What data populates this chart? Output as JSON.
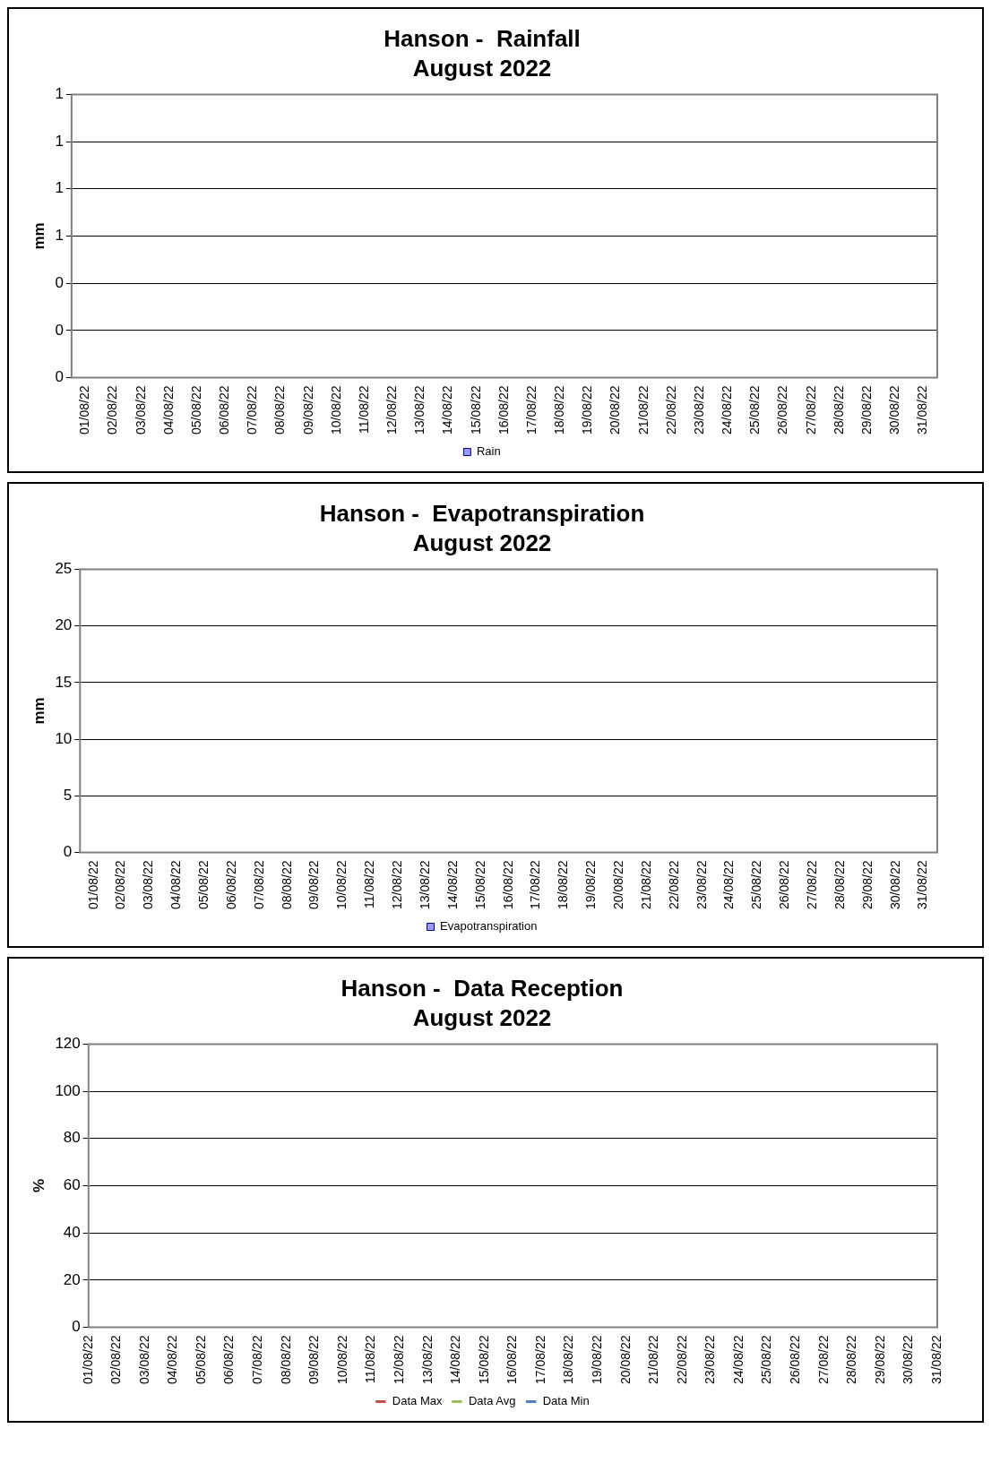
{
  "chart_data": [
    {
      "type": "bar",
      "title": "Hanson -  Rainfall",
      "subtitle": "August 2022",
      "ylabel": "mm",
      "categories": [
        "01/08/22",
        "02/08/22",
        "03/08/22",
        "04/08/22",
        "05/08/22",
        "06/08/22",
        "07/08/22",
        "08/08/22",
        "09/08/22",
        "10/08/22",
        "11/08/22",
        "12/08/22",
        "13/08/22",
        "14/08/22",
        "15/08/22",
        "16/08/22",
        "17/08/22",
        "18/08/22",
        "19/08/22",
        "20/08/22",
        "21/08/22",
        "22/08/22",
        "23/08/22",
        "24/08/22",
        "25/08/22",
        "26/08/22",
        "27/08/22",
        "28/08/22",
        "29/08/22",
        "30/08/22",
        "31/08/22"
      ],
      "series": [
        {
          "name": "Rain",
          "color": "#9999ff",
          "values": [
            null,
            null,
            null,
            null,
            null,
            null,
            null,
            null,
            null,
            null,
            null,
            null,
            null,
            null,
            null,
            null,
            null,
            null,
            null,
            null,
            null,
            null,
            null,
            null,
            null,
            null,
            null,
            null,
            null,
            null,
            null
          ]
        }
      ],
      "ylim": [
        0,
        1.2
      ],
      "yticks": [
        0,
        {
          "value": 0.2,
          "label": "0"
        },
        {
          "value": 0.4,
          "label": "0"
        },
        {
          "value": 0.6,
          "label": "1"
        },
        {
          "value": 0.8,
          "label": "1"
        },
        {
          "value": 1,
          "label": "1"
        },
        {
          "value": 1.2,
          "label": "1"
        }
      ],
      "grid": "y",
      "legend": "bottom"
    },
    {
      "type": "bar",
      "title": "Hanson -  Evapotranspiration",
      "subtitle": "August 2022",
      "ylabel": "mm",
      "categories": [
        "01/08/22",
        "02/08/22",
        "03/08/22",
        "04/08/22",
        "05/08/22",
        "06/08/22",
        "07/08/22",
        "08/08/22",
        "09/08/22",
        "10/08/22",
        "11/08/22",
        "12/08/22",
        "13/08/22",
        "14/08/22",
        "15/08/22",
        "16/08/22",
        "17/08/22",
        "18/08/22",
        "19/08/22",
        "20/08/22",
        "21/08/22",
        "22/08/22",
        "23/08/22",
        "24/08/22",
        "25/08/22",
        "26/08/22",
        "27/08/22",
        "28/08/22",
        "29/08/22",
        "30/08/22",
        "31/08/22"
      ],
      "series": [
        {
          "name": "Evapotranspiration",
          "color": "#9999ff",
          "values": [
            null,
            null,
            null,
            null,
            null,
            null,
            null,
            null,
            null,
            null,
            null,
            null,
            null,
            null,
            null,
            null,
            null,
            null,
            null,
            null,
            null,
            null,
            null,
            null,
            null,
            null,
            null,
            null,
            null,
            null,
            null
          ]
        }
      ],
      "ylim": [
        0,
        25
      ],
      "yticks": [
        0,
        5,
        10,
        15,
        20,
        25
      ],
      "grid": "y",
      "legend": "bottom"
    },
    {
      "type": "line",
      "title": "Hanson -  Data Reception",
      "subtitle": "August 2022",
      "ylabel": "%",
      "categories": [
        "01/08/22",
        "02/08/22",
        "03/08/22",
        "04/08/22",
        "05/08/22",
        "06/08/22",
        "07/08/22",
        "08/08/22",
        "09/08/22",
        "10/08/22",
        "11/08/22",
        "12/08/22",
        "13/08/22",
        "14/08/22",
        "15/08/22",
        "16/08/22",
        "17/08/22",
        "18/08/22",
        "19/08/22",
        "20/08/22",
        "21/08/22",
        "22/08/22",
        "23/08/22",
        "24/08/22",
        "25/08/22",
        "26/08/22",
        "27/08/22",
        "28/08/22",
        "29/08/22",
        "30/08/22",
        "31/08/22"
      ],
      "series": [
        {
          "name": "Data Max",
          "color": "#c0504d",
          "values": [
            null,
            null,
            null,
            null,
            null,
            null,
            null,
            null,
            null,
            null,
            null,
            null,
            null,
            null,
            null,
            null,
            null,
            null,
            null,
            null,
            null,
            null,
            null,
            null,
            null,
            null,
            null,
            null,
            null,
            null,
            null
          ]
        },
        {
          "name": "Data Avg",
          "color": "#9bbb59",
          "values": [
            null,
            null,
            null,
            null,
            null,
            null,
            null,
            null,
            null,
            null,
            null,
            null,
            null,
            null,
            null,
            null,
            null,
            null,
            null,
            null,
            null,
            null,
            null,
            null,
            null,
            null,
            null,
            null,
            null,
            null,
            null
          ]
        },
        {
          "name": "Data Min",
          "color": "#4f81bd",
          "values": [
            null,
            null,
            null,
            null,
            null,
            null,
            null,
            null,
            null,
            null,
            null,
            null,
            null,
            null,
            null,
            null,
            null,
            null,
            null,
            null,
            null,
            null,
            null,
            null,
            null,
            null,
            null,
            null,
            null,
            null,
            null
          ]
        }
      ],
      "ylim": [
        0,
        120
      ],
      "yticks": [
        0,
        20,
        40,
        60,
        80,
        100,
        120
      ],
      "grid": "y",
      "legend": "bottom"
    }
  ]
}
